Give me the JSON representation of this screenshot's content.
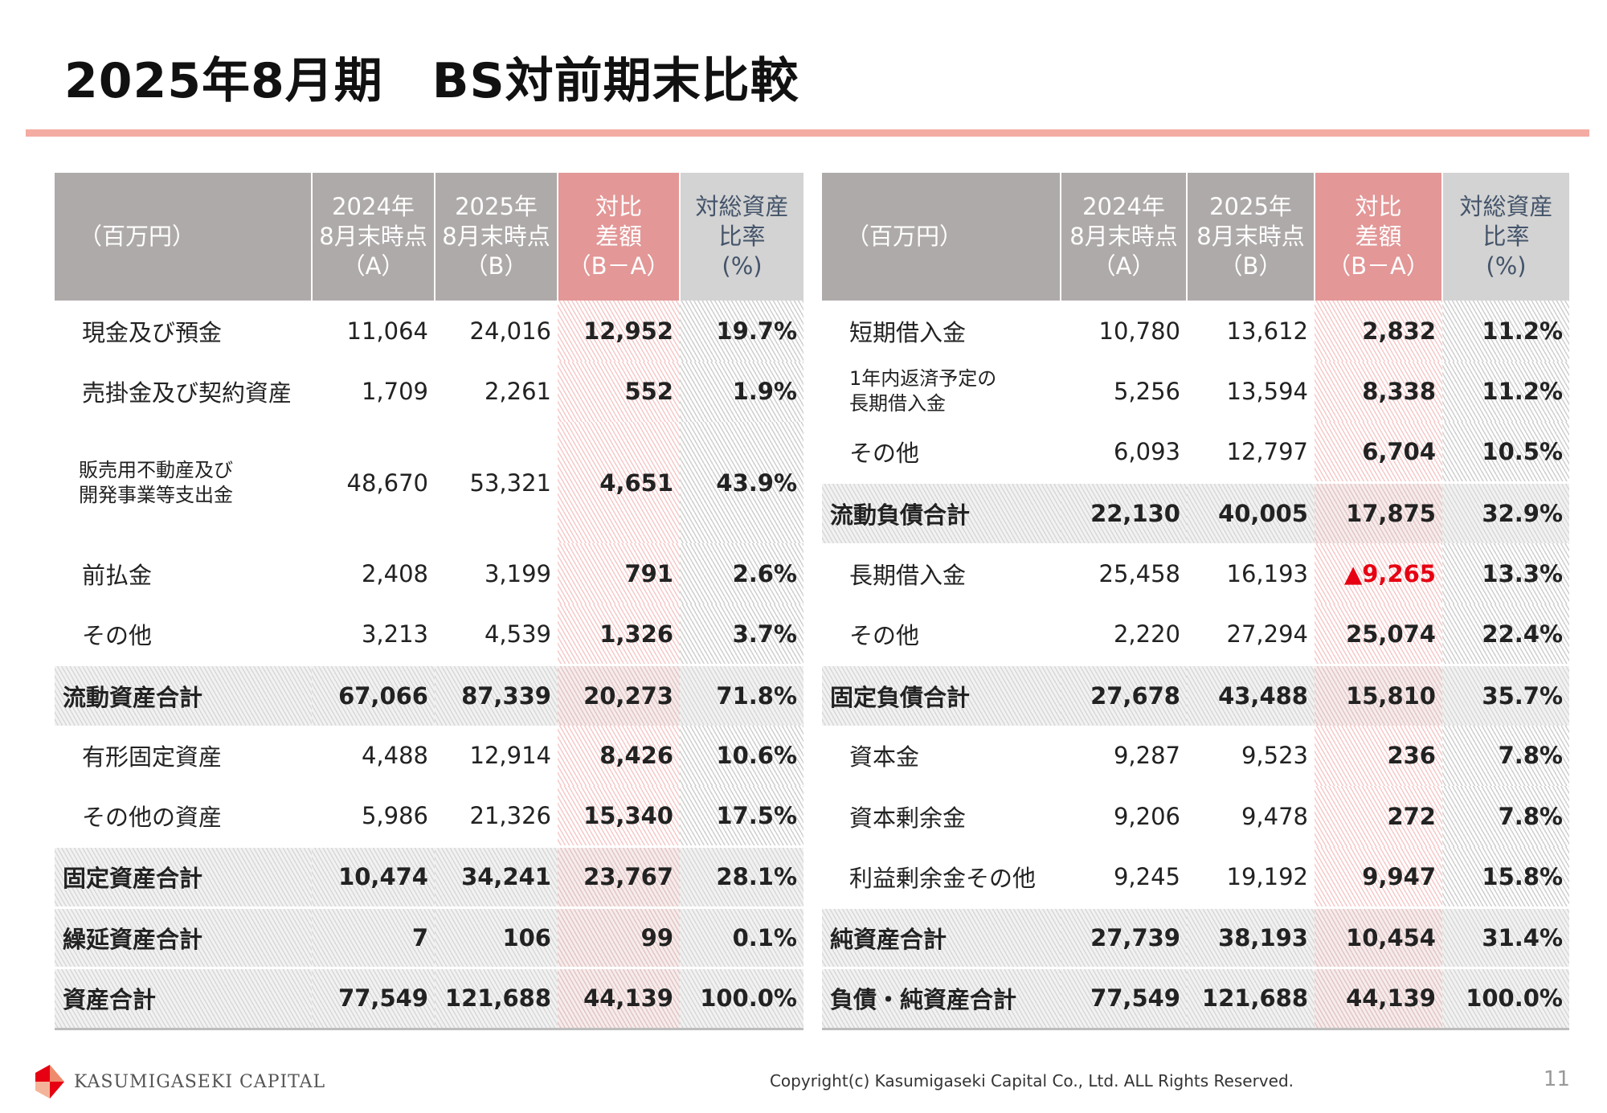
{
  "title": "2025年8月期　BS対前期末比較",
  "headers": {
    "unit": "（百万円）",
    "col_a": [
      "2024年",
      "8月末時点",
      "（A）"
    ],
    "col_b": [
      "2025年",
      "8月末時点",
      "（B）"
    ],
    "col_diff": [
      "対比",
      "差額",
      "（B－A）"
    ],
    "col_ratio": [
      "対総資産",
      "比率",
      "(%)"
    ]
  },
  "assets": [
    {
      "label": "現金及び預金",
      "a": "11,064",
      "b": "24,016",
      "diff": "12,952",
      "ratio": "19.7%",
      "type": "item"
    },
    {
      "label": "売掛金及び契約資産",
      "a": "1,709",
      "b": "2,261",
      "diff": "552",
      "ratio": "1.9%",
      "type": "item"
    },
    {
      "label": "販売用不動産及び\n開発事業等支出金",
      "a": "48,670",
      "b": "53,321",
      "diff": "4,651",
      "ratio": "43.9%",
      "type": "item2"
    },
    {
      "label": "前払金",
      "a": "2,408",
      "b": "3,199",
      "diff": "791",
      "ratio": "2.6%",
      "type": "item"
    },
    {
      "label": "その他",
      "a": "3,213",
      "b": "4,539",
      "diff": "1,326",
      "ratio": "3.7%",
      "type": "item"
    },
    {
      "label": "流動資産合計",
      "a": "67,066",
      "b": "87,339",
      "diff": "20,273",
      "ratio": "71.8%",
      "type": "sub"
    },
    {
      "label": "有形固定資産",
      "a": "4,488",
      "b": "12,914",
      "diff": "8,426",
      "ratio": "10.6%",
      "type": "item"
    },
    {
      "label": "その他の資産",
      "a": "5,986",
      "b": "21,326",
      "diff": "15,340",
      "ratio": "17.5%",
      "type": "item"
    },
    {
      "label": "固定資産合計",
      "a": "10,474",
      "b": "34,241",
      "diff": "23,767",
      "ratio": "28.1%",
      "type": "sub"
    },
    {
      "label": "繰延資産合計",
      "a": "7",
      "b": "106",
      "diff": "99",
      "ratio": "0.1%",
      "type": "sub"
    },
    {
      "label": "資産合計",
      "a": "77,549",
      "b": "121,688",
      "diff": "44,139",
      "ratio": "100.0%",
      "type": "total"
    }
  ],
  "liabilities": [
    {
      "label": "短期借入金",
      "a": "10,780",
      "b": "13,612",
      "diff": "2,832",
      "ratio": "11.2%",
      "type": "item"
    },
    {
      "label": "1年内返済予定の\n長期借入金",
      "a": "5,256",
      "b": "13,594",
      "diff": "8,338",
      "ratio": "11.2%",
      "type": "small"
    },
    {
      "label": "その他",
      "a": "6,093",
      "b": "12,797",
      "diff": "6,704",
      "ratio": "10.5%",
      "type": "item"
    },
    {
      "label": "流動負債合計",
      "a": "22,130",
      "b": "40,005",
      "diff": "17,875",
      "ratio": "32.9%",
      "type": "sub"
    },
    {
      "label": "長期借入金",
      "a": "25,458",
      "b": "16,193",
      "diff": "▲9,265",
      "ratio": "13.3%",
      "type": "item",
      "negative": true
    },
    {
      "label": "その他",
      "a": "2,220",
      "b": "27,294",
      "diff": "25,074",
      "ratio": "22.4%",
      "type": "item"
    },
    {
      "label": "固定負債合計",
      "a": "27,678",
      "b": "43,488",
      "diff": "15,810",
      "ratio": "35.7%",
      "type": "sub"
    },
    {
      "label": "資本金",
      "a": "9,287",
      "b": "9,523",
      "diff": "236",
      "ratio": "7.8%",
      "type": "item"
    },
    {
      "label": "資本剰余金",
      "a": "9,206",
      "b": "9,478",
      "diff": "272",
      "ratio": "7.8%",
      "type": "item"
    },
    {
      "label": "利益剰余金その他",
      "a": "9,245",
      "b": "19,192",
      "diff": "9,947",
      "ratio": "15.8%",
      "type": "item"
    },
    {
      "label": "純資産合計",
      "a": "27,739",
      "b": "38,193",
      "diff": "10,454",
      "ratio": "31.4%",
      "type": "sub"
    },
    {
      "label": "負債・純資産合計",
      "a": "77,549",
      "b": "121,688",
      "diff": "44,139",
      "ratio": "100.0%",
      "type": "total"
    }
  ],
  "colors": {
    "accent": "#f4aba2",
    "header_gray": "#afaaaa",
    "header_diff": "#e39797",
    "negative": "#e60012"
  },
  "footer": {
    "logo_text": "KASUMIGASEKI CAPITAL",
    "copyright": "Copyright(c) Kasumigaseki Capital Co., Ltd. ALL Rights Reserved.",
    "page": "11"
  }
}
